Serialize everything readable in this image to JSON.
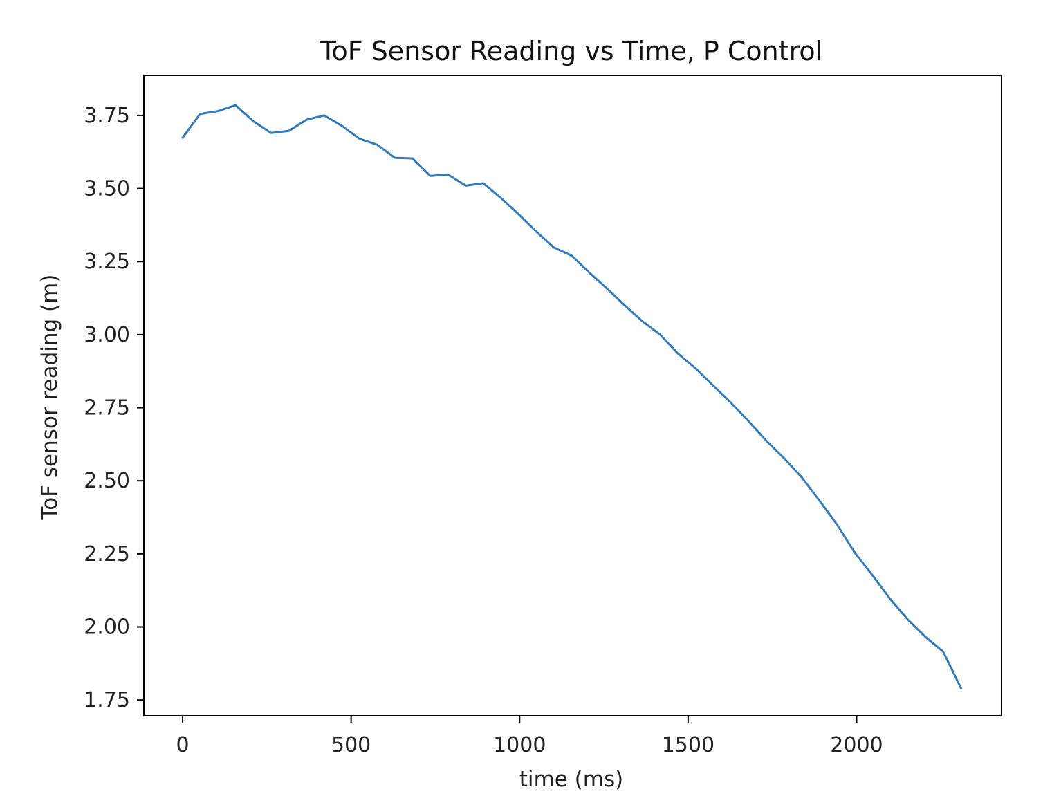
{
  "chart_data": {
    "type": "line",
    "title": "ToF Sensor Reading vs Time, P Control",
    "xlabel": "time (ms)",
    "ylabel": "ToF sensor reading (m)",
    "xlim": [
      -115,
      2430
    ],
    "ylim": [
      1.696,
      3.887
    ],
    "x_ticks": [
      0,
      500,
      1000,
      1500,
      2000
    ],
    "x_tick_labels": [
      "0",
      "500",
      "1000",
      "1500",
      "2000"
    ],
    "y_ticks": [
      1.75,
      2.0,
      2.25,
      2.5,
      2.75,
      3.0,
      3.25,
      3.5,
      3.75
    ],
    "y_tick_labels": [
      "1.75",
      "2.00",
      "2.25",
      "2.50",
      "2.75",
      "3.00",
      "3.25",
      "3.50",
      "3.75"
    ],
    "grid": false,
    "series": [
      {
        "color": "#2f7bbd",
        "x": [
          0,
          52,
          105,
          157,
          210,
          262,
          315,
          367,
          420,
          472,
          525,
          577,
          630,
          682,
          735,
          787,
          840,
          892,
          945,
          997,
          1050,
          1102,
          1155,
          1207,
          1260,
          1312,
          1365,
          1417,
          1470,
          1522,
          1575,
          1627,
          1680,
          1732,
          1785,
          1837,
          1890,
          1942,
          1995,
          2047,
          2100,
          2152,
          2205,
          2257,
          2310
        ],
        "values": [
          3.674,
          3.755,
          3.765,
          3.785,
          3.73,
          3.69,
          3.697,
          3.735,
          3.75,
          3.715,
          3.67,
          3.65,
          3.605,
          3.603,
          3.543,
          3.548,
          3.51,
          3.518,
          3.467,
          3.412,
          3.352,
          3.298,
          3.27,
          3.212,
          3.157,
          3.1,
          3.045,
          3.0,
          2.935,
          2.885,
          2.825,
          2.767,
          2.703,
          2.637,
          2.577,
          2.512,
          2.432,
          2.35,
          2.253,
          2.177,
          2.095,
          2.025,
          1.965,
          1.915,
          1.79
        ]
      }
    ]
  }
}
